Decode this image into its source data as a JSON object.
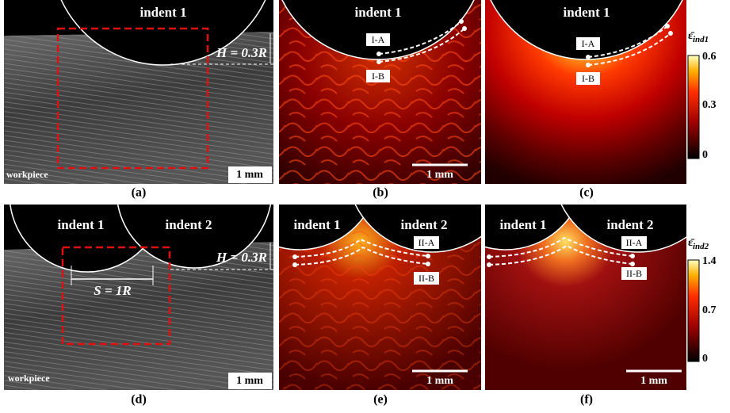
{
  "panels": [
    {
      "label": "(a)",
      "indent_1": "indent 1",
      "height": "H = 0.3R",
      "material": "workpiece",
      "scale": "1 mm"
    },
    {
      "label": "(b)",
      "indent_1": "indent 1",
      "path_a": "I-A",
      "path_b": "I-B",
      "scale": "1 mm"
    },
    {
      "label": "(c)",
      "indent_1": "indent 1",
      "path_a": "I-A",
      "path_b": "I-B"
    },
    {
      "label": "(d)",
      "indent_1": "indent 1",
      "indent_2": "indent 2",
      "height": "H = 0.3R",
      "spacing": "S = 1R",
      "material": "workpiece",
      "scale": "1 mm"
    },
    {
      "label": "(e)",
      "indent_1": "indent 1",
      "indent_2": "indent 2",
      "path_a": "II-A",
      "path_b": "II-B",
      "scale": "1 mm"
    },
    {
      "label": "(f)",
      "indent_1": "indent 1",
      "indent_2": "indent 2",
      "path_a": "II-A",
      "path_b": "II-B",
      "scale": "1 mm"
    }
  ],
  "colorbars": [
    {
      "symbol": "ε̄",
      "subscript": "ind1",
      "ticks": [
        "0.6",
        "0.3",
        "0"
      ]
    },
    {
      "symbol": "ε̄",
      "subscript": "ind2",
      "ticks": [
        "1.4",
        "0.7",
        "0"
      ]
    }
  ]
}
